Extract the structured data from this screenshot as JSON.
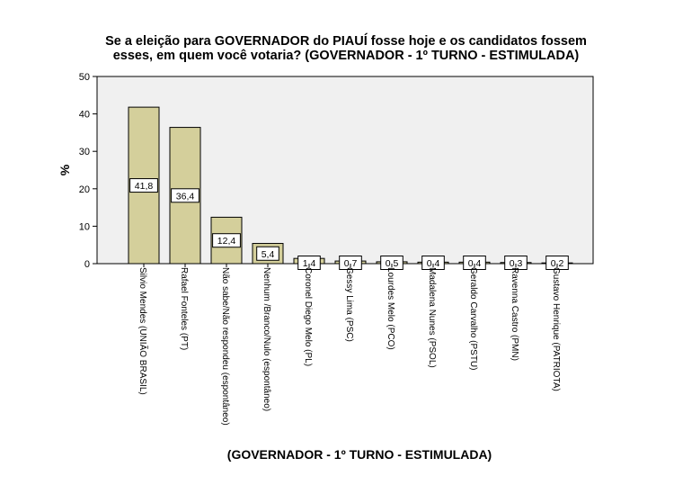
{
  "chart_data": {
    "type": "bar",
    "title_lines": [
      "Se a eleição para GOVERNADOR do PIAUÍ fosse hoje e os candidatos fossem",
      "esses, em quem você votaria? (GOVERNADOR - 1º TURNO - ESTIMULADA)"
    ],
    "xlabel": "(GOVERNADOR - 1º TURNO - ESTIMULADA)",
    "ylabel": "%",
    "ylim": [
      0,
      50
    ],
    "yticks": [
      0,
      10,
      20,
      30,
      40,
      50
    ],
    "categories": [
      "Silvio Mendes (UNIÃO BRASIL)",
      "Rafael Fonteles (PT)",
      "Não sabe/Não respondeu (espontâneo)",
      "Nenhum /Branco/Nulo (espontâneo)",
      "Coronel Diego Melo (PL)",
      "Gessy Lima (PSC)",
      "Lourdes Melo (PCO)",
      "Madalena Nunes (PSOL)",
      "Geraldo Carvalho (PSTU)",
      "Ravenna Castro (PMN)",
      "Gustavo Henrique (PATRIOTA)"
    ],
    "values": [
      41.8,
      36.4,
      12.4,
      5.4,
      1.4,
      0.7,
      0.5,
      0.4,
      0.4,
      0.3,
      0.2
    ],
    "data_labels": [
      "41,8",
      "36,4",
      "12,4",
      "5,4",
      "1,4",
      "0,7",
      "0,5",
      "0,4",
      "0,4",
      "0,3",
      "0,2"
    ],
    "grid": false,
    "colors": {
      "bar_fill": "#d4cf9b",
      "bar_stroke": "#000000",
      "plot_background": "#f0f0f0"
    }
  }
}
